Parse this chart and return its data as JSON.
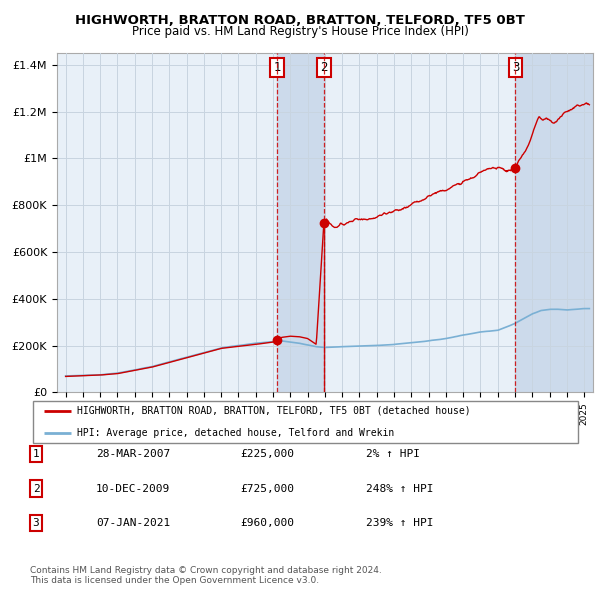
{
  "title": "HIGHWORTH, BRATTON ROAD, BRATTON, TELFORD, TF5 0BT",
  "subtitle": "Price paid vs. HM Land Registry's House Price Index (HPI)",
  "xlim": [
    1994.5,
    2025.5
  ],
  "ylim": [
    0,
    1450000
  ],
  "yticks": [
    0,
    200000,
    400000,
    600000,
    800000,
    1000000,
    1200000,
    1400000
  ],
  "ytick_labels": [
    "£0",
    "£200K",
    "£400K",
    "£600K",
    "£800K",
    "£1M",
    "£1.2M",
    "£1.4M"
  ],
  "bg_color": "#e8f0f8",
  "plot_bg": "#e8f0f8",
  "grid_color": "#c8d4e0",
  "hpi_color": "#7ab0d4",
  "price_color": "#cc0000",
  "marker_color": "#cc0000",
  "sale1_x": 2007.23,
  "sale1_y": 225000,
  "sale2_x": 2009.94,
  "sale2_y": 725000,
  "sale3_x": 2021.02,
  "sale3_y": 960000,
  "shade1_x1": 2007.23,
  "shade1_x2": 2009.94,
  "shade2_x1": 2021.02,
  "shade2_x2": 2025.5,
  "shade_color": "#ccdaeb",
  "legend_house_label": "HIGHWORTH, BRATTON ROAD, BRATTON, TELFORD, TF5 0BT (detached house)",
  "legend_hpi_label": "HPI: Average price, detached house, Telford and Wrekin",
  "table_data": [
    [
      "1",
      "28-MAR-2007",
      "£225,000",
      "2% ↑ HPI"
    ],
    [
      "2",
      "10-DEC-2009",
      "£725,000",
      "248% ↑ HPI"
    ],
    [
      "3",
      "07-JAN-2021",
      "£960,000",
      "239% ↑ HPI"
    ]
  ],
  "footer": "Contains HM Land Registry data © Crown copyright and database right 2024.\nThis data is licensed under the Open Government Licence v3.0.",
  "label_box_color": "#cc0000"
}
